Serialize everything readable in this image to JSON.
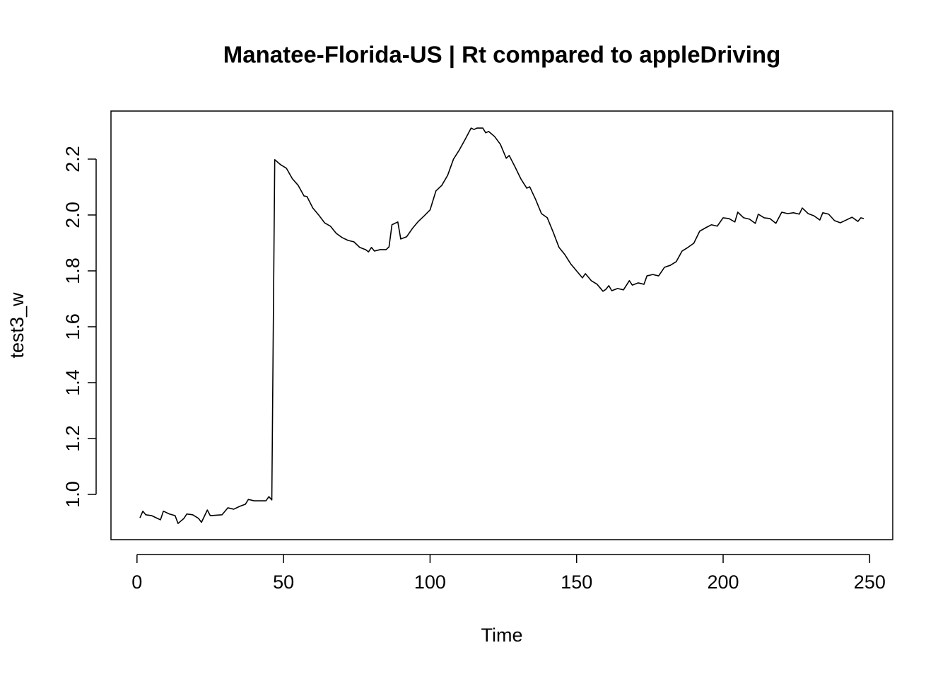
{
  "chart_data": {
    "type": "line",
    "title": "Manatee-Florida-US | Rt compared to appleDriving",
    "x_label": "Time",
    "y_label": "test3_w",
    "x": [
      1,
      2,
      3,
      5,
      7,
      8,
      9,
      11,
      13,
      14,
      16,
      17,
      19,
      21,
      22,
      24,
      25,
      29,
      31,
      33,
      35,
      37,
      38,
      40,
      44,
      45,
      46,
      47,
      49,
      51,
      53,
      55,
      57,
      58,
      60,
      62,
      64,
      66,
      68,
      70,
      72,
      74,
      76,
      78,
      79,
      80,
      81,
      83,
      85,
      86,
      87,
      89,
      90,
      92,
      94,
      96,
      98,
      100,
      102,
      104,
      106,
      108,
      110,
      112,
      114,
      115,
      116,
      118,
      119,
      120,
      122,
      124,
      126,
      127,
      129,
      131,
      133,
      134,
      136,
      138,
      140,
      142,
      144,
      146,
      148,
      150,
      152,
      153,
      155,
      157,
      159,
      160,
      161,
      162,
      164,
      166,
      168,
      169,
      171,
      173,
      174,
      176,
      178,
      180,
      182,
      184,
      186,
      188,
      190,
      192,
      194,
      196,
      198,
      200,
      202,
      204,
      205,
      207,
      209,
      211,
      212,
      214,
      216,
      218,
      220,
      222,
      224,
      226,
      227,
      229,
      231,
      233,
      234,
      236,
      238,
      240,
      242,
      244,
      246,
      247,
      248
    ],
    "series": [
      {
        "name": "test3_w",
        "color": "#000000",
        "values": [
          0.916,
          0.94,
          0.927,
          0.924,
          0.914,
          0.909,
          0.94,
          0.93,
          0.924,
          0.896,
          0.914,
          0.93,
          0.927,
          0.914,
          0.9,
          0.944,
          0.924,
          0.927,
          0.952,
          0.947,
          0.957,
          0.965,
          0.982,
          0.977,
          0.977,
          0.992,
          0.98,
          2.198,
          2.18,
          2.167,
          2.13,
          2.106,
          2.068,
          2.066,
          2.025,
          2.0,
          1.972,
          1.96,
          1.934,
          1.919,
          1.909,
          1.904,
          1.884,
          1.876,
          1.868,
          1.884,
          1.871,
          1.876,
          1.876,
          1.886,
          1.965,
          1.975,
          1.914,
          1.922,
          1.952,
          1.977,
          1.997,
          2.018,
          2.086,
          2.106,
          2.142,
          2.2,
          2.233,
          2.271,
          2.311,
          2.306,
          2.311,
          2.311,
          2.294,
          2.299,
          2.281,
          2.253,
          2.203,
          2.213,
          2.172,
          2.129,
          2.096,
          2.101,
          2.056,
          2.005,
          1.99,
          1.939,
          1.884,
          1.858,
          1.825,
          1.8,
          1.775,
          1.79,
          1.765,
          1.752,
          1.727,
          1.734,
          1.747,
          1.729,
          1.737,
          1.732,
          1.765,
          1.749,
          1.757,
          1.752,
          1.782,
          1.787,
          1.782,
          1.813,
          1.82,
          1.833,
          1.871,
          1.884,
          1.899,
          1.942,
          1.954,
          1.965,
          1.96,
          1.99,
          1.987,
          1.975,
          2.01,
          1.99,
          1.985,
          1.97,
          2.003,
          1.99,
          1.987,
          1.97,
          2.01,
          2.005,
          2.008,
          2.003,
          2.025,
          2.005,
          1.997,
          1.982,
          2.008,
          2.003,
          1.98,
          1.972,
          1.982,
          1.992,
          1.977,
          1.99,
          1.987
        ]
      }
    ],
    "xlim": [
      -8.88,
      257.88
    ],
    "xticks": [
      0,
      50,
      100,
      150,
      200,
      250
    ],
    "ylim": [
      0.838,
      2.372
    ],
    "yticks": [
      {
        "value": 1.0,
        "label": "1.0"
      },
      {
        "value": 1.2,
        "label": "1.2"
      },
      {
        "value": 1.4,
        "label": "1.4"
      },
      {
        "value": 1.6,
        "label": "1.6"
      },
      {
        "value": 1.8,
        "label": "1.8"
      },
      {
        "value": 2.0,
        "label": "2.0"
      },
      {
        "value": 2.2,
        "label": "2.2"
      }
    ],
    "grid": false
  }
}
